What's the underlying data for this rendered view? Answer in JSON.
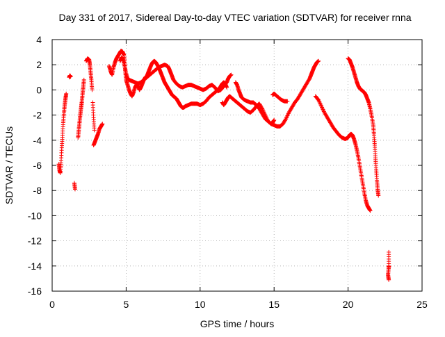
{
  "chart_data": {
    "type": "scatter",
    "title": "Day 331 of 2017, Sidereal Day-to-day VTEC variation (SDTVAR) for receiver rnna",
    "xlabel": "GPS time / hours",
    "ylabel": "SDTVAR / TECUs",
    "xlim": [
      0,
      25
    ],
    "ylim": [
      -16,
      4
    ],
    "xticks": [
      0,
      5,
      10,
      15,
      20,
      25
    ],
    "yticks": [
      -16,
      -14,
      -12,
      -10,
      -8,
      -6,
      -4,
      -2,
      0,
      2,
      4
    ],
    "grid": true,
    "marker": "+",
    "colors": {
      "points": "#ff0000",
      "grid": "#a0a0a0",
      "frame": "#000000"
    },
    "segments": [
      [
        [
          0.45,
          -5.9
        ],
        [
          0.5,
          -6.4
        ],
        [
          0.55,
          -6.6
        ],
        [
          0.6,
          -5.8
        ],
        [
          0.65,
          -4.6
        ],
        [
          0.7,
          -3.6
        ],
        [
          0.75,
          -2.6
        ],
        [
          0.8,
          -1.8
        ],
        [
          0.85,
          -1.2
        ],
        [
          0.9,
          -0.7
        ],
        [
          0.95,
          -0.3
        ]
      ],
      [
        [
          1.15,
          1.0
        ],
        [
          1.2,
          1.15
        ],
        [
          1.25,
          1.05
        ]
      ],
      [
        [
          1.5,
          -7.4
        ],
        [
          1.55,
          -7.9
        ]
      ],
      [
        [
          1.75,
          -3.8
        ],
        [
          1.8,
          -3.2
        ],
        [
          1.85,
          -2.6
        ],
        [
          1.9,
          -2.0
        ],
        [
          1.95,
          -1.5
        ],
        [
          2.0,
          -1.0
        ],
        [
          2.05,
          -0.4
        ],
        [
          2.1,
          0.2
        ],
        [
          2.15,
          0.8
        ]
      ],
      [
        [
          2.3,
          2.3
        ],
        [
          2.4,
          2.5
        ],
        [
          2.5,
          2.4
        ],
        [
          2.55,
          2.0
        ],
        [
          2.6,
          1.4
        ],
        [
          2.65,
          0.8
        ],
        [
          2.7,
          0.0
        ]
      ],
      [
        [
          2.75,
          -1.0
        ],
        [
          2.8,
          -2.2
        ],
        [
          2.85,
          -3.2
        ]
      ],
      [
        [
          2.8,
          -4.4
        ],
        [
          2.9,
          -4.1
        ],
        [
          3.0,
          -3.8
        ],
        [
          3.1,
          -3.5
        ],
        [
          3.2,
          -3.1
        ],
        [
          3.3,
          -2.9
        ],
        [
          3.4,
          -2.7
        ]
      ],
      [
        [
          3.85,
          1.9
        ],
        [
          3.95,
          1.5
        ],
        [
          4.05,
          1.2
        ],
        [
          4.15,
          1.8
        ],
        [
          4.25,
          2.2
        ],
        [
          4.35,
          2.5
        ],
        [
          4.45,
          2.7
        ],
        [
          4.55,
          2.9
        ],
        [
          4.65,
          3.1
        ],
        [
          4.75,
          3.05
        ],
        [
          4.85,
          2.8
        ],
        [
          4.9,
          2.2
        ],
        [
          4.95,
          1.4
        ],
        [
          5.0,
          0.8
        ],
        [
          5.1,
          0.4
        ],
        [
          5.2,
          0.0
        ],
        [
          5.3,
          -0.3
        ],
        [
          5.4,
          -0.5
        ],
        [
          5.5,
          -0.2
        ],
        [
          5.6,
          0.2
        ],
        [
          5.7,
          0.4
        ],
        [
          5.8,
          0.3
        ],
        [
          5.9,
          0.0
        ],
        [
          6.0,
          0.2
        ],
        [
          6.1,
          0.5
        ],
        [
          6.2,
          0.8
        ],
        [
          6.3,
          1.0
        ],
        [
          6.4,
          1.1
        ],
        [
          6.5,
          1.4
        ],
        [
          6.6,
          1.7
        ],
        [
          6.7,
          2.0
        ],
        [
          6.8,
          2.2
        ],
        [
          6.9,
          2.3
        ],
        [
          7.0,
          2.2
        ],
        [
          7.1,
          2.0
        ],
        [
          7.2,
          1.8
        ],
        [
          7.3,
          1.5
        ],
        [
          7.4,
          1.2
        ],
        [
          7.5,
          0.9
        ],
        [
          7.6,
          0.6
        ],
        [
          7.7,
          0.4
        ],
        [
          7.8,
          0.2
        ],
        [
          7.9,
          0.0
        ],
        [
          8.0,
          -0.2
        ],
        [
          8.1,
          -0.4
        ],
        [
          8.2,
          -0.5
        ],
        [
          8.3,
          -0.6
        ],
        [
          8.4,
          -0.7
        ],
        [
          8.5,
          -0.9
        ],
        [
          8.6,
          -1.1
        ],
        [
          8.7,
          -1.3
        ],
        [
          8.8,
          -1.4
        ],
        [
          8.9,
          -1.4
        ],
        [
          9.0,
          -1.3
        ],
        [
          9.2,
          -1.2
        ],
        [
          9.4,
          -1.1
        ],
        [
          9.6,
          -1.1
        ],
        [
          9.8,
          -1.1
        ],
        [
          10.0,
          -1.2
        ],
        [
          10.2,
          -1.1
        ],
        [
          10.4,
          -0.9
        ],
        [
          10.6,
          -0.6
        ],
        [
          10.8,
          -0.4
        ],
        [
          11.0,
          -0.2
        ],
        [
          11.2,
          0.0
        ],
        [
          11.4,
          0.3
        ],
        [
          11.5,
          0.5
        ],
        [
          11.6,
          0.6
        ],
        [
          11.7,
          0.5
        ],
        [
          11.8,
          0.2
        ]
      ],
      [
        [
          4.6,
          2.3
        ],
        [
          4.7,
          2.6
        ],
        [
          4.8,
          2.4
        ],
        [
          4.9,
          1.9
        ],
        [
          5.0,
          1.3
        ],
        [
          5.1,
          0.9
        ],
        [
          5.2,
          0.8
        ],
        [
          5.4,
          0.7
        ],
        [
          5.6,
          0.6
        ],
        [
          5.8,
          0.5
        ],
        [
          6.0,
          0.6
        ],
        [
          6.2,
          0.8
        ],
        [
          6.4,
          1.0
        ],
        [
          6.6,
          1.2
        ],
        [
          6.8,
          1.4
        ],
        [
          7.0,
          1.6
        ],
        [
          7.2,
          1.8
        ],
        [
          7.4,
          1.9
        ],
        [
          7.6,
          2.0
        ],
        [
          7.8,
          1.9
        ],
        [
          7.9,
          1.7
        ],
        [
          8.0,
          1.4
        ],
        [
          8.1,
          1.1
        ],
        [
          8.2,
          0.8
        ],
        [
          8.4,
          0.5
        ],
        [
          8.6,
          0.3
        ],
        [
          8.8,
          0.2
        ],
        [
          9.0,
          0.3
        ],
        [
          9.2,
          0.4
        ],
        [
          9.4,
          0.4
        ],
        [
          9.6,
          0.3
        ],
        [
          9.8,
          0.2
        ],
        [
          10.0,
          0.1
        ],
        [
          10.2,
          0.0
        ],
        [
          10.4,
          0.1
        ],
        [
          10.6,
          0.3
        ],
        [
          10.8,
          0.4
        ],
        [
          11.0,
          0.2
        ],
        [
          11.2,
          -0.1
        ],
        [
          11.4,
          0.0
        ],
        [
          11.6,
          0.3
        ],
        [
          11.8,
          0.6
        ],
        [
          11.9,
          0.9
        ],
        [
          12.0,
          1.1
        ],
        [
          12.1,
          1.2
        ]
      ],
      [
        [
          11.5,
          -1.0
        ],
        [
          11.6,
          -1.2
        ],
        [
          11.7,
          -1.0
        ],
        [
          11.8,
          -0.8
        ],
        [
          11.9,
          -0.6
        ],
        [
          12.0,
          -0.5
        ],
        [
          12.2,
          -0.7
        ],
        [
          12.4,
          -0.9
        ],
        [
          12.6,
          -1.1
        ],
        [
          12.8,
          -1.3
        ],
        [
          13.0,
          -1.5
        ],
        [
          13.2,
          -1.7
        ],
        [
          13.4,
          -1.8
        ],
        [
          13.6,
          -1.6
        ],
        [
          13.8,
          -1.3
        ],
        [
          14.0,
          -1.1
        ],
        [
          14.2,
          -1.5
        ],
        [
          14.4,
          -2.0
        ],
        [
          14.6,
          -2.5
        ],
        [
          14.8,
          -2.7
        ],
        [
          14.9,
          -2.6
        ],
        [
          15.0,
          -2.4
        ]
      ],
      [
        [
          12.4,
          0.6
        ],
        [
          12.5,
          0.4
        ],
        [
          12.6,
          0.0
        ],
        [
          12.7,
          -0.3
        ],
        [
          12.8,
          -0.6
        ],
        [
          13.0,
          -0.8
        ],
        [
          13.2,
          -0.9
        ],
        [
          13.4,
          -1.0
        ],
        [
          13.6,
          -1.0
        ],
        [
          13.8,
          -1.2
        ],
        [
          14.0,
          -1.5
        ],
        [
          14.2,
          -1.9
        ],
        [
          14.4,
          -2.3
        ],
        [
          14.6,
          -2.5
        ],
        [
          14.8,
          -2.7
        ],
        [
          15.0,
          -2.8
        ],
        [
          15.2,
          -2.9
        ],
        [
          15.4,
          -2.9
        ],
        [
          15.6,
          -2.7
        ],
        [
          15.8,
          -2.3
        ],
        [
          16.0,
          -1.8
        ],
        [
          16.2,
          -1.4
        ],
        [
          16.4,
          -1.0
        ],
        [
          16.6,
          -0.7
        ],
        [
          16.8,
          -0.3
        ],
        [
          17.0,
          0.1
        ],
        [
          17.2,
          0.5
        ],
        [
          17.4,
          0.9
        ],
        [
          17.5,
          1.2
        ],
        [
          17.6,
          1.5
        ],
        [
          17.7,
          1.8
        ],
        [
          17.8,
          2.0
        ],
        [
          17.9,
          2.2
        ],
        [
          18.0,
          2.3
        ]
      ],
      [
        [
          14.9,
          -0.4
        ],
        [
          15.0,
          -0.3
        ],
        [
          15.1,
          -0.4
        ],
        [
          15.3,
          -0.6
        ],
        [
          15.5,
          -0.8
        ],
        [
          15.7,
          -0.9
        ],
        [
          15.9,
          -0.9
        ]
      ],
      [
        [
          17.8,
          -0.5
        ],
        [
          18.0,
          -0.8
        ],
        [
          18.2,
          -1.3
        ],
        [
          18.4,
          -1.8
        ],
        [
          18.6,
          -2.2
        ],
        [
          18.8,
          -2.6
        ],
        [
          19.0,
          -3.0
        ],
        [
          19.2,
          -3.3
        ],
        [
          19.4,
          -3.6
        ],
        [
          19.6,
          -3.8
        ],
        [
          19.8,
          -3.9
        ],
        [
          20.0,
          -3.8
        ],
        [
          20.1,
          -3.6
        ],
        [
          20.2,
          -3.5
        ],
        [
          20.3,
          -3.6
        ],
        [
          20.4,
          -3.9
        ],
        [
          20.5,
          -4.3
        ],
        [
          20.6,
          -4.8
        ],
        [
          20.7,
          -5.4
        ],
        [
          20.8,
          -6.1
        ],
        [
          20.9,
          -6.8
        ],
        [
          21.0,
          -7.5
        ],
        [
          21.1,
          -8.2
        ],
        [
          21.2,
          -8.8
        ],
        [
          21.3,
          -9.2
        ],
        [
          21.4,
          -9.4
        ],
        [
          21.5,
          -9.6
        ]
      ],
      [
        [
          20.0,
          2.5
        ],
        [
          20.1,
          2.4
        ],
        [
          20.2,
          2.1
        ],
        [
          20.3,
          1.8
        ],
        [
          20.4,
          1.4
        ],
        [
          20.5,
          1.0
        ],
        [
          20.6,
          0.6
        ],
        [
          20.7,
          0.3
        ],
        [
          20.8,
          0.1
        ],
        [
          20.9,
          0.0
        ],
        [
          21.0,
          -0.1
        ],
        [
          21.1,
          -0.2
        ],
        [
          21.2,
          -0.4
        ],
        [
          21.3,
          -0.7
        ],
        [
          21.4,
          -1.0
        ],
        [
          21.5,
          -1.5
        ],
        [
          21.6,
          -2.1
        ],
        [
          21.7,
          -2.8
        ],
        [
          21.75,
          -3.5
        ],
        [
          21.8,
          -4.4
        ],
        [
          21.85,
          -5.4
        ],
        [
          21.9,
          -6.3
        ],
        [
          21.95,
          -7.2
        ],
        [
          22.0,
          -7.9
        ],
        [
          22.05,
          -8.4
        ]
      ],
      [
        [
          22.75,
          -12.9
        ],
        [
          22.75,
          -14.0
        ],
        [
          22.75,
          -14.1
        ],
        [
          22.7,
          -14.7
        ],
        [
          22.75,
          -15.1
        ]
      ]
    ]
  }
}
